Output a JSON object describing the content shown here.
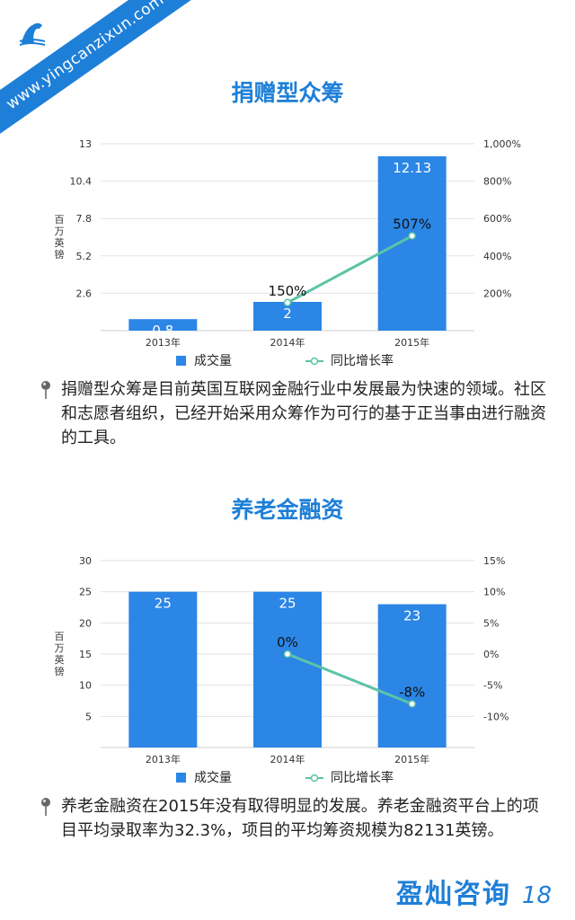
{
  "watermark": {
    "url": "www.yingcanzixun.com"
  },
  "charts": {
    "chart1": {
      "title": "捐赠型众筹"
    },
    "chart2": {
      "title": "养老金融资"
    }
  },
  "chart_data": [
    {
      "type": "bar",
      "title": "捐赠型众筹",
      "categories": [
        "2013年",
        "2014年",
        "2015年"
      ],
      "ylabel": "百万英镑",
      "ylim": [
        0,
        13
      ],
      "yticks": [
        "2.6",
        "5.2",
        "7.8",
        "10.4",
        "13"
      ],
      "y2ticks": [
        "200%",
        "400%",
        "600%",
        "800%",
        "1,000%"
      ],
      "y2lim": [
        0,
        1000
      ],
      "series": [
        {
          "name": "成交量",
          "type": "bar",
          "values": [
            0.8,
            2,
            12.13
          ],
          "labels": [
            "0.8",
            "2",
            "12.13"
          ]
        },
        {
          "name": "同比增长率",
          "type": "line",
          "axis": "right",
          "values": [
            null,
            150,
            507
          ],
          "labels": [
            "",
            "150%",
            "507%"
          ]
        }
      ],
      "legend": "bottom",
      "colors": {
        "bar": "#2b86e6",
        "line": "#5cc3a7"
      }
    },
    {
      "type": "bar",
      "title": "养老金融资",
      "categories": [
        "2013年",
        "2014年",
        "2015年"
      ],
      "ylabel": "百万英镑",
      "ylim": [
        0,
        30
      ],
      "yticks": [
        "5",
        "10",
        "15",
        "20",
        "25",
        "30"
      ],
      "y2ticks": [
        "-10%",
        "-5%",
        "0%",
        "5%",
        "10%",
        "15%"
      ],
      "y2lim": [
        -15,
        15
      ],
      "series": [
        {
          "name": "成交量",
          "type": "bar",
          "values": [
            25,
            25,
            23
          ],
          "labels": [
            "25",
            "25",
            "23"
          ]
        },
        {
          "name": "同比增长率",
          "type": "line",
          "axis": "right",
          "values": [
            null,
            0,
            -8
          ],
          "labels": [
            "",
            "0%",
            "-8%"
          ]
        }
      ],
      "legend": "bottom",
      "colors": {
        "bar": "#2b86e6",
        "line": "#5cc3a7"
      }
    }
  ],
  "paragraphs": {
    "p1": "捐赠型众筹是目前英国互联网金融行业中发展最为快速的领域。社区和志愿者组织，已经开始采用众筹作为可行的基于正当事由进行融资的工具。",
    "p2": "养老金融资在2015年没有取得明显的发展。养老金融资平台上的项目平均录取率为32.3%，项目的平均筹资规模为82131英镑。"
  },
  "footer": {
    "brand": "盈灿咨询",
    "page": "18"
  },
  "icons": {
    "logo": "horse-logo-icon",
    "bullet": "pushpin-icon"
  }
}
